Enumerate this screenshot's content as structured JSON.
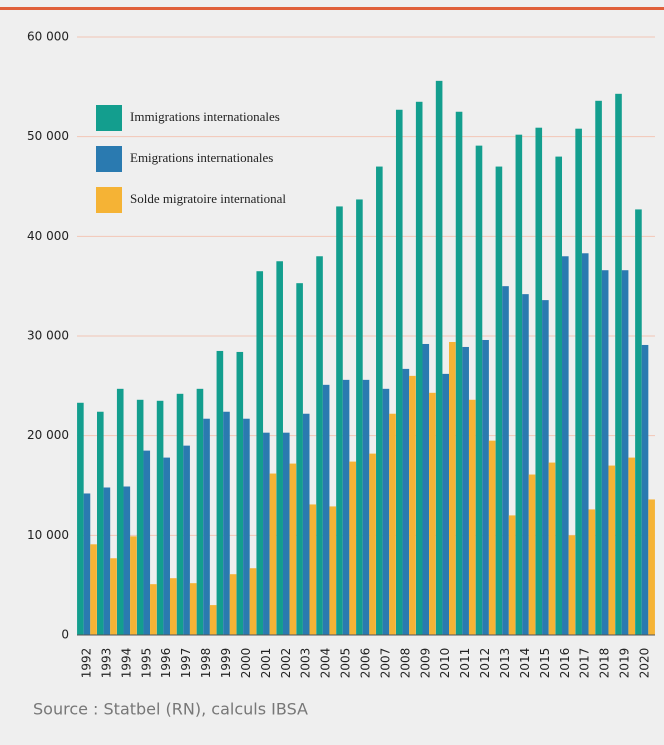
{
  "chart_data": {
    "type": "bar",
    "categories": [
      "1992",
      "1993",
      "1994",
      "1995",
      "1996",
      "1997",
      "1998",
      "1999",
      "2000",
      "2001",
      "2002",
      "2003",
      "2004",
      "2005",
      "2006",
      "2007",
      "2008",
      "2009",
      "2010",
      "2011",
      "2012",
      "2013",
      "2014",
      "2015",
      "2016",
      "2017",
      "2018",
      "2019",
      "2020"
    ],
    "series": [
      {
        "name": "Immigrations internationales",
        "color": "#139e8e",
        "values": [
          23300,
          22400,
          24700,
          23600,
          23500,
          24200,
          24700,
          28500,
          28400,
          36500,
          37500,
          35300,
          38000,
          43000,
          43700,
          47000,
          52700,
          53500,
          55600,
          52500,
          49100,
          47000,
          50200,
          50900,
          48000,
          50800,
          53600,
          54300,
          42700
        ]
      },
      {
        "name": "Emigrations internationales",
        "color": "#2a7ab0",
        "values": [
          14200,
          14800,
          14900,
          18500,
          17800,
          19000,
          21700,
          22400,
          21700,
          20300,
          20300,
          22200,
          25100,
          25600,
          25600,
          24700,
          26700,
          29200,
          26200,
          28900,
          29600,
          35000,
          34200,
          33600,
          38000,
          38300,
          36600,
          36600,
          29100
        ]
      },
      {
        "name": "Solde migratoire international",
        "color": "#f5b335",
        "values": [
          9100,
          7700,
          9900,
          5100,
          5700,
          5200,
          3000,
          6100,
          6700,
          16200,
          17200,
          13100,
          12900,
          17400,
          18200,
          22200,
          26000,
          24300,
          29400,
          23600,
          19500,
          12000,
          16100,
          17300,
          10000,
          12600,
          17000,
          17800,
          13600
        ]
      }
    ],
    "ylim": [
      0,
      60000
    ],
    "yticks": [
      0,
      {
        "value": 10000,
        "label": "10 000"
      },
      {
        "value": 20000,
        "label": "20 000"
      },
      {
        "value": 30000,
        "label": "30 000"
      },
      {
        "value": 40000,
        "label": "40 000"
      },
      {
        "value": 50000,
        "label": "50 000"
      },
      {
        "value": 60000,
        "label": "60 000"
      }
    ],
    "grid": true,
    "source": "Source : Statbel (RN), calculs IBSA"
  }
}
